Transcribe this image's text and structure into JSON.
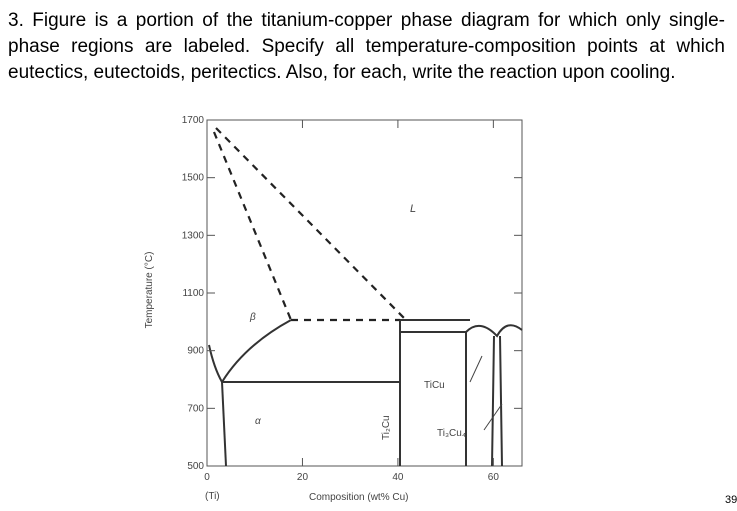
{
  "question": {
    "text": "3. Figure is a portion of the titanium-copper phase diagram for which only single-phase regions are labeled. Specify all temperature-composition points at which eutectics, eutectoids, peritectics. Also, for each, write the reaction upon cooling."
  },
  "figure": {
    "ylabel": "Temperature (°C)",
    "xlabel": "Composition (wt% Cu)",
    "x_note": "(Ti)",
    "ylim": [
      500,
      1700
    ],
    "yticks": [
      500,
      700,
      900,
      1100,
      1300,
      1500,
      1700
    ],
    "xlim": [
      0,
      66
    ],
    "xticks": [
      0,
      20,
      40,
      60
    ],
    "regions": {
      "liquid": "L",
      "beta": "β",
      "alpha": "α",
      "ti2cu": "Ti₂Cu",
      "ticu": "TiCu",
      "ti3cu4": "Ti₃Cu₄"
    }
  },
  "page_number": "39"
}
